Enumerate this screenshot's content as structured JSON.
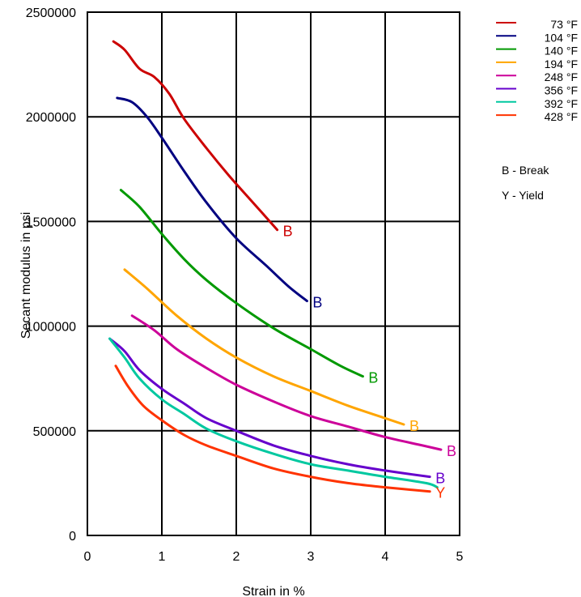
{
  "chart_data": {
    "type": "line",
    "xlabel": "Strain in %",
    "ylabel": "Secant modulus in psi",
    "xlim": [
      0,
      5
    ],
    "ylim": [
      0,
      2500000
    ],
    "x_ticks": [
      "0",
      "1",
      "2",
      "3",
      "4",
      "5"
    ],
    "y_ticks": [
      "0",
      "500000",
      "1000000",
      "1500000",
      "2000000",
      "2500000"
    ],
    "grid": true,
    "legend_position": "top-right",
    "series": [
      {
        "name": "73 °F",
        "color": "#cc0000",
        "end_label": "B",
        "x": [
          0.35,
          0.5,
          0.7,
          0.9,
          1.1,
          1.3,
          1.6,
          1.9,
          2.2,
          2.55
        ],
        "y": [
          2360000,
          2320000,
          2230000,
          2190000,
          2110000,
          1990000,
          1850000,
          1720000,
          1600000,
          1460000
        ]
      },
      {
        "name": "104 °F",
        "color": "#000080",
        "end_label": "B",
        "x": [
          0.4,
          0.6,
          0.8,
          1.0,
          1.3,
          1.6,
          2.0,
          2.4,
          2.7,
          2.95
        ],
        "y": [
          2090000,
          2070000,
          2000000,
          1900000,
          1740000,
          1590000,
          1420000,
          1290000,
          1190000,
          1120000
        ]
      },
      {
        "name": "140 °F",
        "color": "#009900",
        "end_label": "B",
        "x": [
          0.45,
          0.7,
          1.0,
          1.3,
          1.6,
          2.0,
          2.5,
          3.0,
          3.4,
          3.7
        ],
        "y": [
          1650000,
          1570000,
          1440000,
          1320000,
          1220000,
          1110000,
          990000,
          890000,
          810000,
          760000
        ]
      },
      {
        "name": "194 °F",
        "color": "#ffa500",
        "end_label": "B",
        "x": [
          0.5,
          0.8,
          1.2,
          1.6,
          2.0,
          2.5,
          3.0,
          3.5,
          4.0,
          4.25
        ],
        "y": [
          1270000,
          1180000,
          1050000,
          940000,
          850000,
          760000,
          690000,
          620000,
          560000,
          530000
        ]
      },
      {
        "name": "248 °F",
        "color": "#cc0099",
        "end_label": "B",
        "x": [
          0.6,
          0.9,
          1.2,
          1.6,
          2.0,
          2.5,
          3.0,
          3.5,
          4.0,
          4.5,
          4.75
        ],
        "y": [
          1050000,
          980000,
          890000,
          800000,
          720000,
          640000,
          570000,
          520000,
          470000,
          430000,
          410000
        ]
      },
      {
        "name": "356 °F",
        "color": "#6600cc",
        "end_label": "B",
        "x": [
          0.3,
          0.5,
          0.7,
          1.0,
          1.3,
          1.6,
          2.0,
          2.5,
          3.0,
          3.5,
          4.0,
          4.6
        ],
        "y": [
          940000,
          880000,
          790000,
          700000,
          630000,
          560000,
          500000,
          430000,
          380000,
          340000,
          310000,
          280000
        ]
      },
      {
        "name": "392 °F",
        "color": "#00c8a0",
        "end_label": "",
        "x": [
          0.3,
          0.5,
          0.7,
          1.0,
          1.3,
          1.6,
          2.0,
          2.5,
          3.0,
          3.5,
          4.0,
          4.55,
          4.7
        ],
        "y": [
          940000,
          850000,
          750000,
          650000,
          580000,
          510000,
          450000,
          390000,
          340000,
          310000,
          280000,
          250000,
          230000
        ]
      },
      {
        "name": "428 °F",
        "color": "#ff3300",
        "end_label": "Y",
        "x": [
          0.38,
          0.55,
          0.75,
          1.0,
          1.3,
          1.6,
          2.0,
          2.5,
          3.0,
          3.5,
          4.0,
          4.6
        ],
        "y": [
          810000,
          710000,
          620000,
          550000,
          480000,
          430000,
          380000,
          320000,
          280000,
          250000,
          230000,
          210000
        ]
      }
    ],
    "notes": [
      "B - Break",
      "Y - Yield"
    ]
  }
}
